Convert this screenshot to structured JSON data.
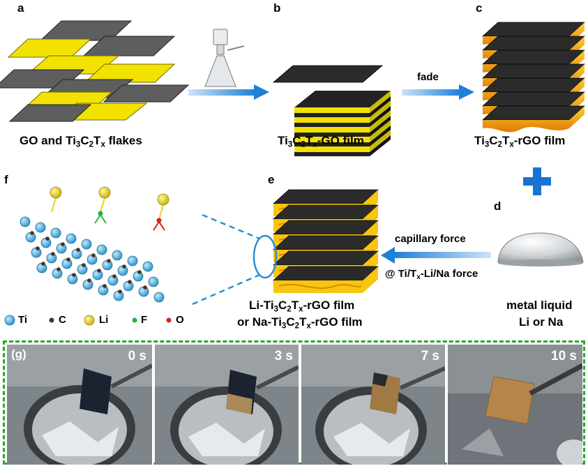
{
  "panels": {
    "a": {
      "label": "a",
      "caption_parts": [
        "GO and Ti",
        "3",
        "C",
        "2",
        "T",
        "x",
        " flakes"
      ]
    },
    "b": {
      "label": "b",
      "caption_parts": [
        "Ti",
        "3",
        "C",
        "2",
        "T",
        "x",
        "-GO film"
      ]
    },
    "c": {
      "label": "c",
      "caption_parts": [
        "Ti",
        "3",
        "C",
        "2",
        "T",
        "x",
        "-rGO film"
      ]
    },
    "d": {
      "label": "d",
      "caption_line1": "metal liquid",
      "caption_line2": "Li or Na"
    },
    "e": {
      "label": "e",
      "caption_line1_parts": [
        "Li-Ti",
        "3",
        "C",
        "2",
        "T",
        "x",
        "-rGO film"
      ],
      "caption_line2_parts": [
        "or Na-Ti",
        "3",
        "C",
        "2",
        "T",
        "x",
        "-rGO film"
      ]
    },
    "f": {
      "label": "f"
    },
    "g": {
      "label": "(g)"
    }
  },
  "arrows": {
    "fade": "fade",
    "capillary": "capillary force",
    "interaction_parts": [
      "@ Ti/T",
      "x",
      "-Li/Na force"
    ]
  },
  "legend": [
    {
      "symbol": "Ti",
      "color": "#3aa6dc"
    },
    {
      "symbol": "C",
      "color": "#4a3020"
    },
    {
      "symbol": "Li",
      "color": "#e8d21a"
    },
    {
      "symbol": "F",
      "color": "#22b33a"
    },
    {
      "symbol": "O",
      "color": "#d62020"
    }
  ],
  "photos": [
    {
      "time": "0 s"
    },
    {
      "time": "3 s"
    },
    {
      "time": "7 s"
    },
    {
      "time": "10 s"
    }
  ],
  "colors": {
    "graphene_oxide": "#f2e200",
    "mxene": "#5c5c5c",
    "rgo": "#f5a80a",
    "arrow_blue": "#1e7fd8",
    "plus_blue": "#1a73d0",
    "frame_green": "#2aa82a"
  }
}
